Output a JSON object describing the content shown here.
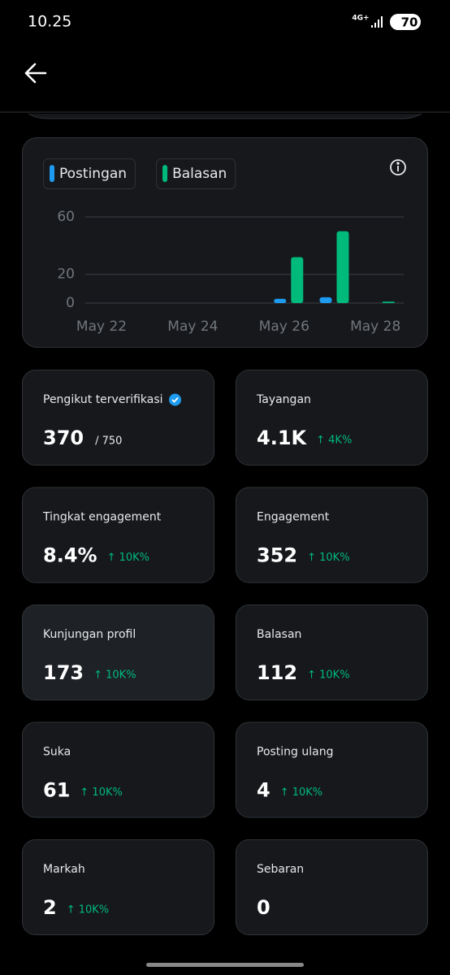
{
  "status_bar": {
    "time": "10.25",
    "network": "4G+",
    "battery": "70"
  },
  "chart_data": {
    "type": "bar",
    "categories": [
      "May 22",
      null,
      "May 24",
      null,
      "May 26",
      null,
      "May 28"
    ],
    "series": [
      {
        "name": "Postingan",
        "color": "#1d9bf0",
        "values": [
          0,
          0,
          0,
          0,
          3,
          4,
          0
        ]
      },
      {
        "name": "Balasan",
        "color": "#00ba7c",
        "values": [
          0,
          0,
          0,
          0,
          32,
          50,
          1
        ]
      }
    ],
    "ylim": [
      0,
      60
    ],
    "yticks": [
      0,
      20,
      60
    ],
    "grid": true
  },
  "metrics": [
    {
      "label": "Pengikut terverifikasi",
      "value": "370",
      "suffix": "/ 750",
      "verified": true
    },
    {
      "label": "Tayangan",
      "value": "4.1K",
      "change": "↑ 4K%"
    },
    {
      "label": "Tingkat engagement",
      "value": "8.4%",
      "change": "↑ 10K%"
    },
    {
      "label": "Engagement",
      "value": "352",
      "change": "↑ 10K%"
    },
    {
      "label": "Kunjungan profil",
      "value": "173",
      "change": "↑ 10K%",
      "highlighted": true
    },
    {
      "label": "Balasan",
      "value": "112",
      "change": "↑ 10K%"
    },
    {
      "label": "Suka",
      "value": "61",
      "change": "↑ 10K%"
    },
    {
      "label": "Posting ulang",
      "value": "4",
      "change": "↑ 10K%"
    },
    {
      "label": "Markah",
      "value": "2",
      "change": "↑ 10K%"
    },
    {
      "label": "Sebaran",
      "value": "0"
    }
  ]
}
